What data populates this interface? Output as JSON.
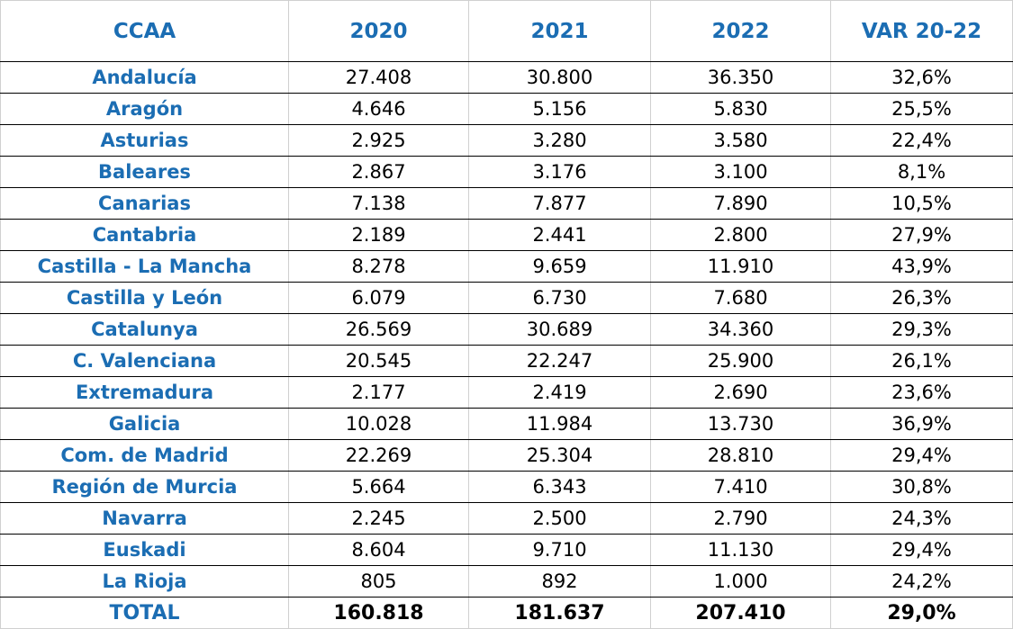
{
  "table": {
    "header": [
      "CCAA",
      "2020",
      "2021",
      "2022",
      "VAR 20-22"
    ],
    "rows": [
      [
        "Andalucía",
        "27.408",
        "30.800",
        "36.350",
        "32,6%"
      ],
      [
        "Aragón",
        "4.646",
        "5.156",
        "5.830",
        "25,5%"
      ],
      [
        "Asturias",
        "2.925",
        "3.280",
        "3.580",
        "22,4%"
      ],
      [
        "Baleares",
        "2.867",
        "3.176",
        "3.100",
        "8,1%"
      ],
      [
        "Canarias",
        "7.138",
        "7.877",
        "7.890",
        "10,5%"
      ],
      [
        "Cantabria",
        "2.189",
        "2.441",
        "2.800",
        "27,9%"
      ],
      [
        "Castilla - La Mancha",
        "8.278",
        "9.659",
        "11.910",
        "43,9%"
      ],
      [
        "Castilla y León",
        "6.079",
        "6.730",
        "7.680",
        "26,3%"
      ],
      [
        "Catalunya",
        "26.569",
        "30.689",
        "34.360",
        "29,3%"
      ],
      [
        "C. Valenciana",
        "20.545",
        "22.247",
        "25.900",
        "26,1%"
      ],
      [
        "Extremadura",
        "2.177",
        "2.419",
        "2.690",
        "23,6%"
      ],
      [
        "Galicia",
        "10.028",
        "11.984",
        "13.730",
        "36,9%"
      ],
      [
        "Com. de Madrid",
        "22.269",
        "25.304",
        "28.810",
        "29,4%"
      ],
      [
        "Región de Murcia",
        "5.664",
        "6.343",
        "7.410",
        "30,8%"
      ],
      [
        "Navarra",
        "2.245",
        "2.500",
        "2.790",
        "24,3%"
      ],
      [
        "Euskadi",
        "8.604",
        "9.710",
        "11.130",
        "29,4%"
      ],
      [
        "La Rioja",
        "805",
        "892",
        "1.000",
        "24,2%"
      ]
    ],
    "total": [
      "TOTAL",
      "160.818",
      "181.637",
      "207.410",
      "29,0%"
    ]
  }
}
